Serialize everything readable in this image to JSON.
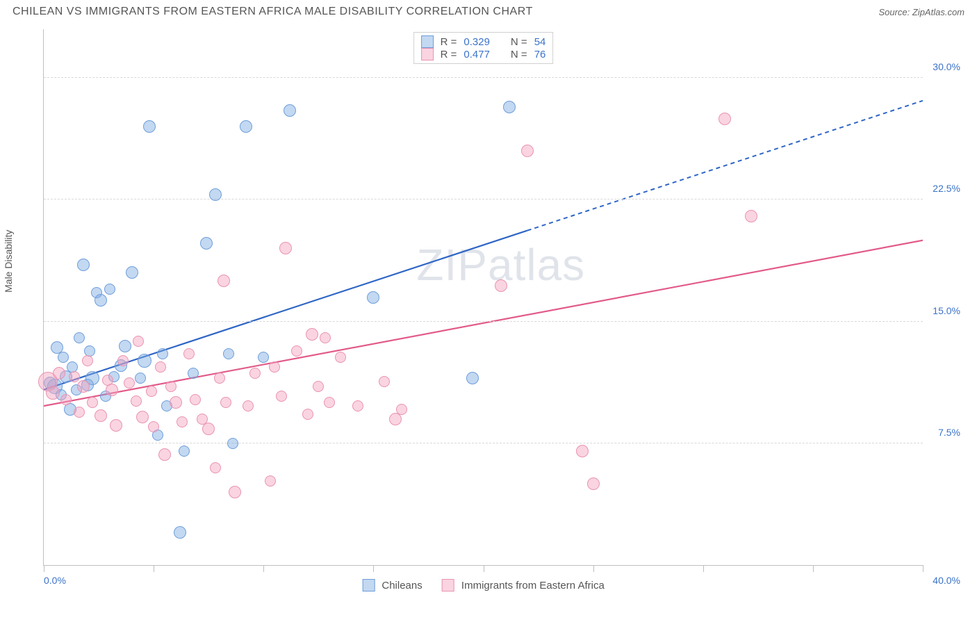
{
  "header": {
    "title": "CHILEAN VS IMMIGRANTS FROM EASTERN AFRICA MALE DISABILITY CORRELATION CHART",
    "source": "Source: ZipAtlas.com"
  },
  "axes": {
    "y_label": "Male Disability",
    "x_min_label": "0.0%",
    "x_max_label": "40.0%",
    "xlim": [
      0,
      40
    ],
    "ylim": [
      0,
      33
    ],
    "y_ticks": [
      {
        "v": 7.5,
        "label": "7.5%"
      },
      {
        "v": 15.0,
        "label": "15.0%"
      },
      {
        "v": 22.5,
        "label": "22.5%"
      },
      {
        "v": 30.0,
        "label": "30.0%"
      }
    ],
    "x_ticks": [
      0,
      5,
      10,
      15,
      20,
      25,
      30,
      35,
      40
    ],
    "grid_color": "#d8d8d8",
    "axis_color": "#bfbfbf"
  },
  "series": [
    {
      "id": "chileans",
      "label": "Chileans",
      "fill": "rgba(122,168,224,0.45)",
      "stroke": "#6e9edb",
      "trend_color": "#2f66c5",
      "trend": {
        "x1": 0,
        "y1": 10.8,
        "x_solid_end": 22,
        "y_solid_end": 20.6,
        "x2": 40,
        "y2": 28.6
      },
      "R": "0.329",
      "N": "54",
      "points": [
        {
          "x": 0.3,
          "y": 11.2,
          "r": 9
        },
        {
          "x": 0.5,
          "y": 11.0,
          "r": 11
        },
        {
          "x": 0.6,
          "y": 13.4,
          "r": 9
        },
        {
          "x": 0.8,
          "y": 10.5,
          "r": 8
        },
        {
          "x": 0.9,
          "y": 12.8,
          "r": 8
        },
        {
          "x": 1.0,
          "y": 11.6,
          "r": 9
        },
        {
          "x": 1.2,
          "y": 9.6,
          "r": 9
        },
        {
          "x": 1.3,
          "y": 12.2,
          "r": 8
        },
        {
          "x": 1.5,
          "y": 10.8,
          "r": 8
        },
        {
          "x": 1.6,
          "y": 14.0,
          "r": 8
        },
        {
          "x": 1.8,
          "y": 18.5,
          "r": 9
        },
        {
          "x": 2.0,
          "y": 11.1,
          "r": 9
        },
        {
          "x": 2.1,
          "y": 13.2,
          "r": 8
        },
        {
          "x": 2.2,
          "y": 11.5,
          "r": 10
        },
        {
          "x": 2.4,
          "y": 16.8,
          "r": 8
        },
        {
          "x": 2.6,
          "y": 16.3,
          "r": 9
        },
        {
          "x": 2.8,
          "y": 10.4,
          "r": 8
        },
        {
          "x": 3.0,
          "y": 17.0,
          "r": 8
        },
        {
          "x": 3.2,
          "y": 11.6,
          "r": 8
        },
        {
          "x": 3.5,
          "y": 12.3,
          "r": 9
        },
        {
          "x": 3.7,
          "y": 13.5,
          "r": 9
        },
        {
          "x": 4.0,
          "y": 18.0,
          "r": 9
        },
        {
          "x": 4.4,
          "y": 11.5,
          "r": 8
        },
        {
          "x": 4.6,
          "y": 12.6,
          "r": 10
        },
        {
          "x": 4.8,
          "y": 27.0,
          "r": 9
        },
        {
          "x": 5.2,
          "y": 8.0,
          "r": 8
        },
        {
          "x": 5.4,
          "y": 13.0,
          "r": 8
        },
        {
          "x": 5.6,
          "y": 9.8,
          "r": 8
        },
        {
          "x": 6.2,
          "y": 2.0,
          "r": 9
        },
        {
          "x": 6.4,
          "y": 7.0,
          "r": 8
        },
        {
          "x": 6.8,
          "y": 11.8,
          "r": 8
        },
        {
          "x": 7.4,
          "y": 19.8,
          "r": 9
        },
        {
          "x": 7.8,
          "y": 22.8,
          "r": 9
        },
        {
          "x": 8.4,
          "y": 13.0,
          "r": 8
        },
        {
          "x": 8.6,
          "y": 7.5,
          "r": 8
        },
        {
          "x": 9.2,
          "y": 27.0,
          "r": 9
        },
        {
          "x": 10.0,
          "y": 12.8,
          "r": 8
        },
        {
          "x": 11.2,
          "y": 28.0,
          "r": 9
        },
        {
          "x": 15.0,
          "y": 16.5,
          "r": 9
        },
        {
          "x": 19.5,
          "y": 11.5,
          "r": 9
        },
        {
          "x": 21.2,
          "y": 28.2,
          "r": 9
        }
      ]
    },
    {
      "id": "eastern_africa",
      "label": "Immigrants from Eastern Africa",
      "fill": "rgba(244,160,188,0.45)",
      "stroke": "#e993b2",
      "trend_color": "#e25a8a",
      "trend": {
        "x1": 0,
        "y1": 9.8,
        "x_solid_end": 40,
        "y_solid_end": 20.0,
        "x2": 40,
        "y2": 20.0
      },
      "R": "0.477",
      "N": "76",
      "points": [
        {
          "x": 0.2,
          "y": 11.3,
          "r": 14
        },
        {
          "x": 0.4,
          "y": 10.6,
          "r": 10
        },
        {
          "x": 0.7,
          "y": 11.8,
          "r": 9
        },
        {
          "x": 1.0,
          "y": 10.2,
          "r": 8
        },
        {
          "x": 1.4,
          "y": 11.6,
          "r": 8
        },
        {
          "x": 1.6,
          "y": 9.4,
          "r": 8
        },
        {
          "x": 1.8,
          "y": 11.0,
          "r": 9
        },
        {
          "x": 2.0,
          "y": 12.6,
          "r": 8
        },
        {
          "x": 2.2,
          "y": 10.0,
          "r": 8
        },
        {
          "x": 2.6,
          "y": 9.2,
          "r": 9
        },
        {
          "x": 2.9,
          "y": 11.4,
          "r": 8
        },
        {
          "x": 3.1,
          "y": 10.8,
          "r": 9
        },
        {
          "x": 3.3,
          "y": 8.6,
          "r": 9
        },
        {
          "x": 3.6,
          "y": 12.6,
          "r": 8
        },
        {
          "x": 3.9,
          "y": 11.2,
          "r": 8
        },
        {
          "x": 4.2,
          "y": 10.1,
          "r": 8
        },
        {
          "x": 4.3,
          "y": 13.8,
          "r": 8
        },
        {
          "x": 4.5,
          "y": 9.1,
          "r": 9
        },
        {
          "x": 4.9,
          "y": 10.7,
          "r": 8
        },
        {
          "x": 5.0,
          "y": 8.5,
          "r": 8
        },
        {
          "x": 5.3,
          "y": 12.2,
          "r": 8
        },
        {
          "x": 5.5,
          "y": 6.8,
          "r": 9
        },
        {
          "x": 5.8,
          "y": 11.0,
          "r": 8
        },
        {
          "x": 6.0,
          "y": 10.0,
          "r": 9
        },
        {
          "x": 6.3,
          "y": 8.8,
          "r": 8
        },
        {
          "x": 6.6,
          "y": 13.0,
          "r": 8
        },
        {
          "x": 6.9,
          "y": 10.2,
          "r": 8
        },
        {
          "x": 7.2,
          "y": 9.0,
          "r": 8
        },
        {
          "x": 7.5,
          "y": 8.4,
          "r": 9
        },
        {
          "x": 7.8,
          "y": 6.0,
          "r": 8
        },
        {
          "x": 8.0,
          "y": 11.5,
          "r": 8
        },
        {
          "x": 8.2,
          "y": 17.5,
          "r": 9
        },
        {
          "x": 8.3,
          "y": 10.0,
          "r": 8
        },
        {
          "x": 8.7,
          "y": 4.5,
          "r": 9
        },
        {
          "x": 9.3,
          "y": 9.8,
          "r": 8
        },
        {
          "x": 9.6,
          "y": 11.8,
          "r": 8
        },
        {
          "x": 10.3,
          "y": 5.2,
          "r": 8
        },
        {
          "x": 10.5,
          "y": 12.2,
          "r": 8
        },
        {
          "x": 10.8,
          "y": 10.4,
          "r": 8
        },
        {
          "x": 11.0,
          "y": 19.5,
          "r": 9
        },
        {
          "x": 11.5,
          "y": 13.2,
          "r": 8
        },
        {
          "x": 12.0,
          "y": 9.3,
          "r": 8
        },
        {
          "x": 12.2,
          "y": 14.2,
          "r": 9
        },
        {
          "x": 12.5,
          "y": 11.0,
          "r": 8
        },
        {
          "x": 12.8,
          "y": 14.0,
          "r": 8
        },
        {
          "x": 13.0,
          "y": 10.0,
          "r": 8
        },
        {
          "x": 13.5,
          "y": 12.8,
          "r": 8
        },
        {
          "x": 14.3,
          "y": 9.8,
          "r": 8
        },
        {
          "x": 15.5,
          "y": 11.3,
          "r": 8
        },
        {
          "x": 16.0,
          "y": 9.0,
          "r": 9
        },
        {
          "x": 16.3,
          "y": 9.6,
          "r": 8
        },
        {
          "x": 20.8,
          "y": 17.2,
          "r": 9
        },
        {
          "x": 22.0,
          "y": 25.5,
          "r": 9
        },
        {
          "x": 24.5,
          "y": 7.0,
          "r": 9
        },
        {
          "x": 25.0,
          "y": 5.0,
          "r": 9
        },
        {
          "x": 31.0,
          "y": 27.5,
          "r": 9
        },
        {
          "x": 32.2,
          "y": 21.5,
          "r": 9
        }
      ]
    }
  ],
  "legend_top": {
    "R_prefix": "R =",
    "N_prefix": "N ="
  },
  "watermark": "ZIPatlas",
  "colors": {
    "background": "#ffffff",
    "tick_label": "#3b73c9",
    "text": "#555555"
  }
}
